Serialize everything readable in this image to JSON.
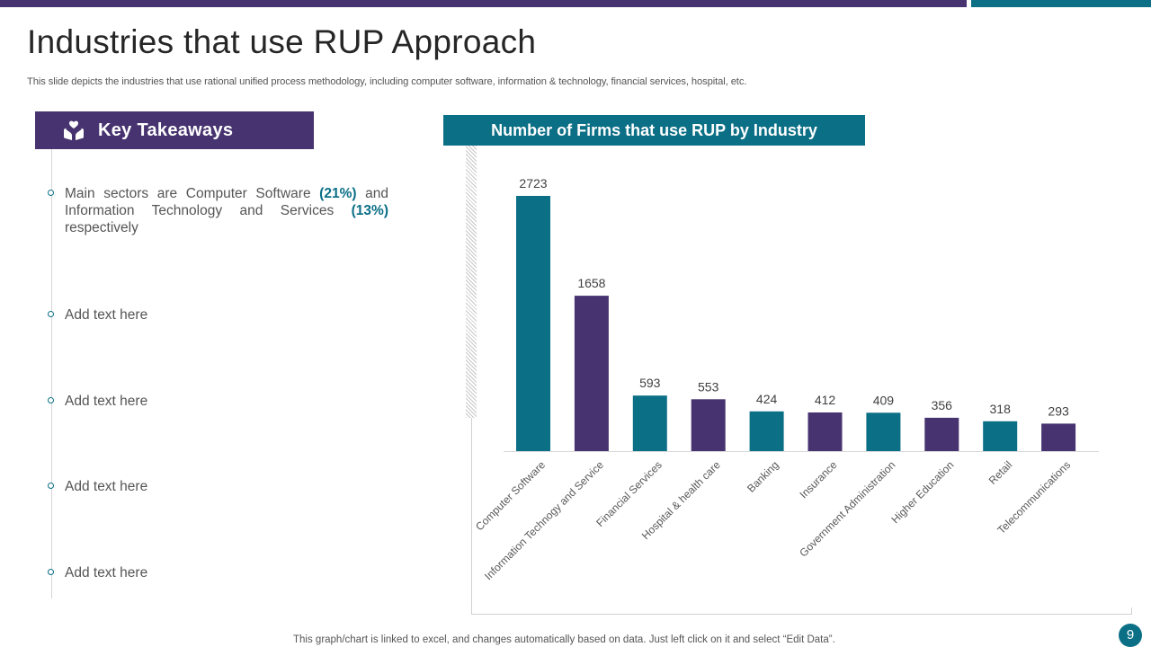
{
  "title": "Industries that use RUP Approach",
  "subtitle": "This slide depicts the industries that use rational unified process methodology, including computer software, information & technology, financial services, hospital, etc.",
  "takeaways": {
    "header": "Key Takeaways",
    "icon": "hands-heart-icon",
    "items": [
      {
        "pre": "Main sectors are Computer Software ",
        "hl1": "(21%)",
        "mid": " and Information Technology  and Services ",
        "hl2": "(13%)",
        "post": " respectively"
      },
      {
        "text": "Add text here"
      },
      {
        "text": "Add text here"
      },
      {
        "text": "Add text here"
      },
      {
        "text": "Add text here"
      }
    ]
  },
  "colors": {
    "purple": "#47336f",
    "teal": "#0b6f86"
  },
  "chart_data": {
    "type": "bar",
    "title": "Number of Firms that use RUP by Industry",
    "categories": [
      "Computer Software",
      "Information Technogy and Service",
      "Financial Services",
      "Hospital & health care",
      "Banking",
      "Insurance",
      "Government Administration",
      "Higher Education",
      "Retail",
      "Telecommunications"
    ],
    "values": [
      2723,
      1658,
      593,
      553,
      424,
      412,
      409,
      356,
      318,
      293
    ],
    "bar_colors": [
      "#0b6f86",
      "#47336f",
      "#0b6f86",
      "#47336f",
      "#0b6f86",
      "#47336f",
      "#0b6f86",
      "#47336f",
      "#0b6f86",
      "#47336f"
    ],
    "data_labels": true,
    "xlabel": "",
    "ylabel": "",
    "ylim": [
      0,
      2723
    ],
    "grid": false
  },
  "footer": "This graph/chart is linked to excel,  and changes automatically based on data. Just left click on it and select “Edit Data”.",
  "page_number": "9"
}
